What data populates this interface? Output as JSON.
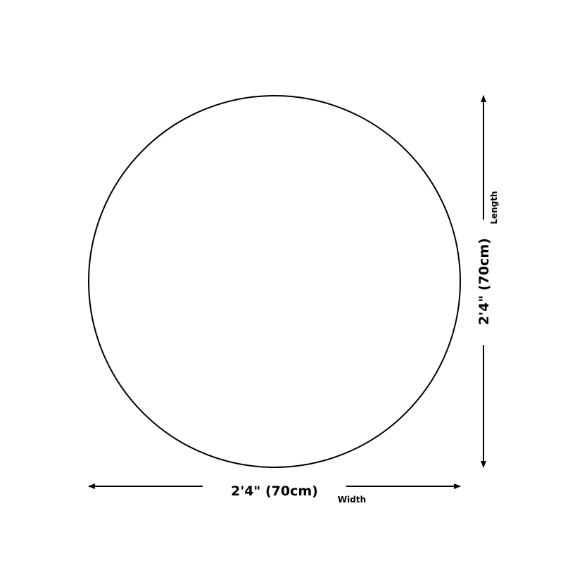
{
  "shape": "circle",
  "width": {
    "value": "2'4\" (70cm)",
    "label": "Width"
  },
  "length": {
    "value": "2'4\" (70cm)",
    "label": "Length"
  },
  "colors": {
    "stroke": "#000000",
    "background": "#ffffff"
  }
}
